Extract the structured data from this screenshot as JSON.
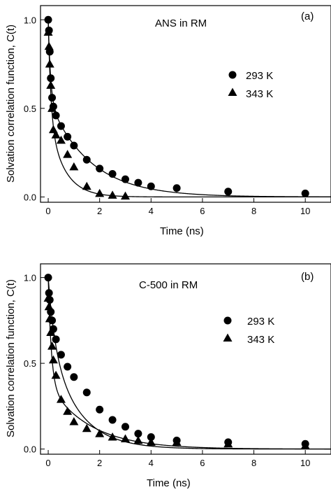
{
  "chart_data": [
    {
      "type": "scatter",
      "panel_label": "(a)",
      "annotation": "ANS in RM",
      "xlabel": "Time (ns)",
      "ylabel": "Solvation correlation function, C(t)",
      "xlim": [
        -0.3,
        11
      ],
      "ylim": [
        -0.03,
        1.08
      ],
      "x_ticks": [
        0,
        2,
        4,
        6,
        8,
        10
      ],
      "y_ticks": [
        0.0,
        0.5,
        1.0
      ],
      "x_tick_labels": [
        "0",
        "2",
        "4",
        "6",
        "8",
        "10"
      ],
      "y_tick_labels": [
        "0.0",
        "0.5",
        "1.0"
      ],
      "legend_position": "center-right",
      "series": [
        {
          "name": "293 K",
          "marker": "circle",
          "x": [
            0,
            0.03,
            0.06,
            0.1,
            0.15,
            0.2,
            0.3,
            0.5,
            0.75,
            1.0,
            1.5,
            2.0,
            2.5,
            3.0,
            3.5,
            4.0,
            5.0,
            7.0,
            10.0
          ],
          "y": [
            1.0,
            0.94,
            0.82,
            0.67,
            0.56,
            0.51,
            0.46,
            0.4,
            0.34,
            0.29,
            0.21,
            0.16,
            0.13,
            0.1,
            0.08,
            0.06,
            0.05,
            0.03,
            0.02
          ],
          "fit": {
            "a1": 0.45,
            "tau1": 0.09,
            "a2": 0.55,
            "tau2": 1.6
          }
        },
        {
          "name": "343 K",
          "marker": "triangle",
          "x": [
            0,
            0.03,
            0.06,
            0.1,
            0.15,
            0.2,
            0.3,
            0.5,
            0.75,
            1.0,
            1.5,
            2.0,
            2.5,
            3.0
          ],
          "y": [
            0.93,
            0.85,
            0.75,
            0.63,
            0.5,
            0.38,
            0.35,
            0.32,
            0.24,
            0.17,
            0.06,
            0.02,
            0.01,
            0.005
          ],
          "fit": {
            "a1": 0.55,
            "tau1": 0.1,
            "a2": 0.45,
            "tau2": 0.6
          }
        }
      ]
    },
    {
      "type": "scatter",
      "panel_label": "(b)",
      "annotation": "C-500 in RM",
      "xlabel": "Time (ns)",
      "ylabel": "Solvation correlation function, C(t)",
      "xlim": [
        -0.3,
        11
      ],
      "ylim": [
        -0.03,
        1.08
      ],
      "x_ticks": [
        0,
        2,
        4,
        6,
        8,
        10
      ],
      "y_ticks": [
        0.0,
        0.5,
        1.0
      ],
      "x_tick_labels": [
        "0",
        "2",
        "4",
        "6",
        "8",
        "10"
      ],
      "y_tick_labels": [
        "0.0",
        "0.5",
        "1.0"
      ],
      "legend_position": "center-right",
      "series": [
        {
          "name": "293 K",
          "marker": "circle",
          "x": [
            0,
            0.03,
            0.06,
            0.1,
            0.15,
            0.2,
            0.3,
            0.5,
            0.75,
            1.0,
            1.5,
            2.0,
            2.5,
            3.0,
            3.5,
            4.0,
            5.0,
            7.0,
            10.0
          ],
          "y": [
            1.0,
            0.91,
            0.87,
            0.8,
            0.75,
            0.7,
            0.64,
            0.55,
            0.48,
            0.42,
            0.33,
            0.23,
            0.17,
            0.13,
            0.09,
            0.07,
            0.05,
            0.04,
            0.03
          ],
          "fit": {
            "a1": 0.35,
            "tau1": 0.25,
            "a2": 0.65,
            "tau2": 1.1
          }
        },
        {
          "name": "343 K",
          "marker": "triangle",
          "x": [
            0,
            0.03,
            0.06,
            0.1,
            0.15,
            0.2,
            0.3,
            0.5,
            0.75,
            1.0,
            1.5,
            2.0,
            2.5,
            3.0,
            3.5,
            4.0,
            5.0,
            7.0,
            10.0
          ],
          "y": [
            0.88,
            0.83,
            0.76,
            0.68,
            0.6,
            0.52,
            0.43,
            0.29,
            0.22,
            0.16,
            0.12,
            0.09,
            0.07,
            0.06,
            0.05,
            0.04,
            0.04,
            0.03,
            0.02
          ],
          "fit": {
            "a1": 0.62,
            "tau1": 0.12,
            "a2": 0.38,
            "tau2": 1.6
          }
        }
      ]
    }
  ]
}
